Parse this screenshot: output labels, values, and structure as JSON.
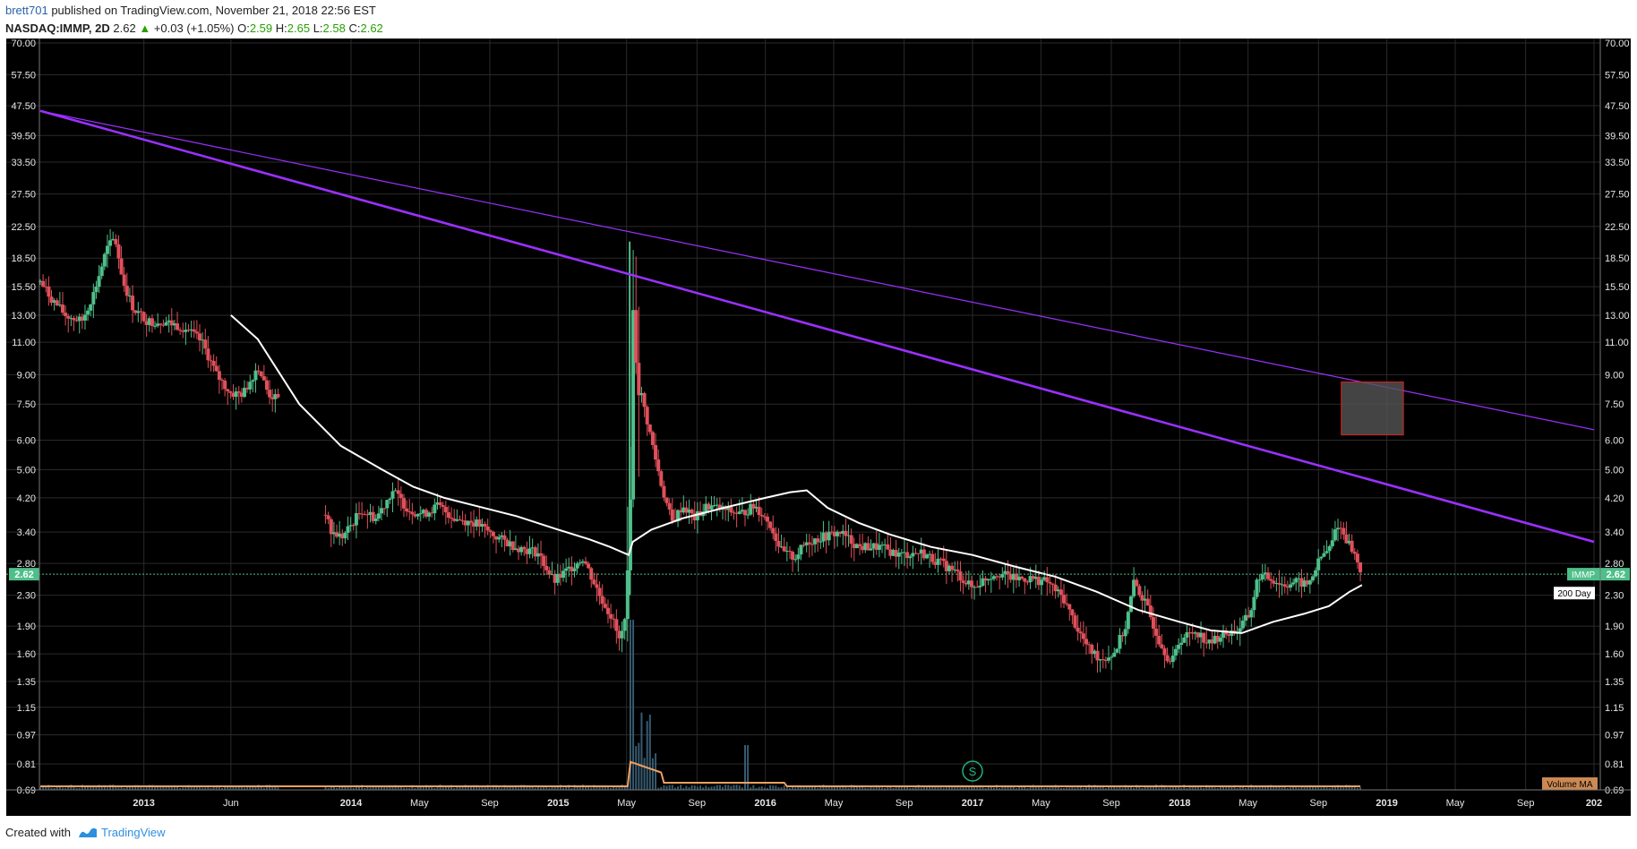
{
  "header": {
    "author": "brett701",
    "published": "published on TradingView.com, November 21, 2018 22:56 EST",
    "symbol": "NASDAQ:IMMP, 2D",
    "last": "2.62",
    "change": "+0.03 (+1.05%)",
    "o_label": "O:",
    "o": "2.59",
    "h_label": "H:",
    "h": "2.65",
    "l_label": "L:",
    "l": "2.58",
    "c_label": "C:",
    "c": "2.62"
  },
  "footer": {
    "created": "Created with",
    "brand": "TradingView"
  },
  "colors": {
    "bg": "#000000",
    "grid": "#2a2a2a",
    "up": "#4fbf8a",
    "down": "#e0505a",
    "ma": "#ffffff",
    "trend": "#9b30ff",
    "volume": "#f0a060",
    "box_fill": "#555555",
    "box_stroke": "#e02020",
    "price_tag": "#4fbf8a",
    "signal": "#20b080"
  },
  "chart_data": {
    "type": "candlestick",
    "scale": "log",
    "symbol": "IMMP",
    "last_price": 2.62,
    "last_price_label": "2.62",
    "y_ticks": [
      "70.00",
      "57.50",
      "47.50",
      "39.50",
      "33.50",
      "27.50",
      "22.50",
      "18.50",
      "15.50",
      "13.00",
      "11.00",
      "9.00",
      "7.50",
      "6.00",
      "5.00",
      "4.20",
      "3.40",
      "2.80",
      "2.30",
      "1.90",
      "1.60",
      "1.35",
      "1.15",
      "0.97",
      "0.81",
      "0.69"
    ],
    "x_ticks": [
      {
        "label": "2013",
        "t": 2013.0,
        "bold": true
      },
      {
        "label": "Jun",
        "t": 2013.42,
        "bold": false
      },
      {
        "label": "2014",
        "t": 2014.0,
        "bold": true
      },
      {
        "label": "May",
        "t": 2014.33,
        "bold": false
      },
      {
        "label": "Sep",
        "t": 2014.67,
        "bold": false
      },
      {
        "label": "2015",
        "t": 2015.0,
        "bold": true
      },
      {
        "label": "May",
        "t": 2015.33,
        "bold": false
      },
      {
        "label": "Sep",
        "t": 2015.67,
        "bold": false
      },
      {
        "label": "2016",
        "t": 2016.0,
        "bold": true
      },
      {
        "label": "May",
        "t": 2016.33,
        "bold": false
      },
      {
        "label": "Sep",
        "t": 2016.67,
        "bold": false
      },
      {
        "label": "2017",
        "t": 2017.0,
        "bold": true
      },
      {
        "label": "May",
        "t": 2017.33,
        "bold": false
      },
      {
        "label": "Sep",
        "t": 2017.67,
        "bold": false
      },
      {
        "label": "2018",
        "t": 2018.0,
        "bold": true
      },
      {
        "label": "May",
        "t": 2018.33,
        "bold": false
      },
      {
        "label": "Sep",
        "t": 2018.67,
        "bold": false
      },
      {
        "label": "2019",
        "t": 2019.0,
        "bold": true
      },
      {
        "label": "May",
        "t": 2019.33,
        "bold": false
      },
      {
        "label": "Sep",
        "t": 2019.67,
        "bold": false
      },
      {
        "label": "202",
        "t": 2020.0,
        "bold": true
      }
    ],
    "price_path": [
      [
        2012.5,
        16.0
      ],
      [
        2012.55,
        14.5
      ],
      [
        2012.62,
        13.0
      ],
      [
        2012.7,
        12.5
      ],
      [
        2012.76,
        15.0
      ],
      [
        2012.82,
        19.5
      ],
      [
        2012.86,
        21.0
      ],
      [
        2012.9,
        16.0
      ],
      [
        2012.95,
        13.5
      ],
      [
        2013.02,
        12.5
      ],
      [
        2013.1,
        12.5
      ],
      [
        2013.2,
        12.0
      ],
      [
        2013.28,
        11.0
      ],
      [
        2013.35,
        9.0
      ],
      [
        2013.42,
        8.0
      ],
      [
        2013.48,
        8.0
      ],
      [
        2013.55,
        9.5
      ],
      [
        2013.6,
        8.0
      ],
      [
        2013.66,
        7.6
      ],
      [
        2013.87,
        4.0
      ],
      [
        2013.9,
        3.4
      ],
      [
        2013.96,
        3.3
      ],
      [
        2014.05,
        3.9
      ],
      [
        2014.12,
        3.7
      ],
      [
        2014.2,
        4.4
      ],
      [
        2014.28,
        3.9
      ],
      [
        2014.35,
        3.8
      ],
      [
        2014.42,
        4.0
      ],
      [
        2014.5,
        3.7
      ],
      [
        2014.6,
        3.6
      ],
      [
        2014.7,
        3.3
      ],
      [
        2014.8,
        3.1
      ],
      [
        2014.9,
        3.0
      ],
      [
        2014.98,
        2.5
      ],
      [
        2015.05,
        2.7
      ],
      [
        2015.12,
        2.9
      ],
      [
        2015.2,
        2.3
      ],
      [
        2015.26,
        2.0
      ],
      [
        2015.3,
        1.7
      ],
      [
        2015.34,
        2.4
      ],
      [
        2015.36,
        13.0
      ],
      [
        2015.4,
        8.0
      ],
      [
        2015.45,
        6.0
      ],
      [
        2015.5,
        4.5
      ],
      [
        2015.55,
        3.6
      ],
      [
        2015.6,
        4.0
      ],
      [
        2015.66,
        3.7
      ],
      [
        2015.72,
        4.0
      ],
      [
        2015.8,
        3.9
      ],
      [
        2015.88,
        3.8
      ],
      [
        2015.95,
        4.0
      ],
      [
        2016.02,
        3.6
      ],
      [
        2016.08,
        3.0
      ],
      [
        2016.14,
        2.9
      ],
      [
        2016.2,
        3.2
      ],
      [
        2016.28,
        3.3
      ],
      [
        2016.36,
        3.4
      ],
      [
        2016.45,
        3.1
      ],
      [
        2016.55,
        3.1
      ],
      [
        2016.65,
        2.95
      ],
      [
        2016.75,
        3.0
      ],
      [
        2016.85,
        2.8
      ],
      [
        2016.92,
        2.65
      ],
      [
        2017.0,
        2.4
      ],
      [
        2017.06,
        2.55
      ],
      [
        2017.12,
        2.65
      ],
      [
        2017.2,
        2.55
      ],
      [
        2017.28,
        2.55
      ],
      [
        2017.36,
        2.5
      ],
      [
        2017.44,
        2.25
      ],
      [
        2017.5,
        1.9
      ],
      [
        2017.56,
        1.65
      ],
      [
        2017.62,
        1.55
      ],
      [
        2017.68,
        1.6
      ],
      [
        2017.74,
        1.9
      ],
      [
        2017.78,
        2.5
      ],
      [
        2017.84,
        2.15
      ],
      [
        2017.9,
        1.75
      ],
      [
        2017.96,
        1.5
      ],
      [
        2018.0,
        1.75
      ],
      [
        2018.08,
        1.85
      ],
      [
        2018.14,
        1.7
      ],
      [
        2018.2,
        1.8
      ],
      [
        2018.28,
        1.85
      ],
      [
        2018.34,
        2.05
      ],
      [
        2018.38,
        2.6
      ],
      [
        2018.44,
        2.55
      ],
      [
        2018.5,
        2.45
      ],
      [
        2018.56,
        2.5
      ],
      [
        2018.62,
        2.45
      ],
      [
        2018.68,
        2.9
      ],
      [
        2018.73,
        3.1
      ],
      [
        2018.76,
        3.6
      ],
      [
        2018.8,
        3.3
      ],
      [
        2018.84,
        3.0
      ],
      [
        2018.88,
        2.62
      ]
    ],
    "ma_label": "200 Day",
    "ma_path": [
      [
        2013.42,
        13.0
      ],
      [
        2013.55,
        11.2
      ],
      [
        2013.75,
        7.5
      ],
      [
        2013.95,
        5.8
      ],
      [
        2014.15,
        5.0
      ],
      [
        2014.3,
        4.5
      ],
      [
        2014.45,
        4.2
      ],
      [
        2014.6,
        4.0
      ],
      [
        2014.8,
        3.75
      ],
      [
        2015.0,
        3.45
      ],
      [
        2015.15,
        3.25
      ],
      [
        2015.25,
        3.1
      ],
      [
        2015.34,
        2.95
      ],
      [
        2015.36,
        3.2
      ],
      [
        2015.45,
        3.45
      ],
      [
        2015.6,
        3.7
      ],
      [
        2015.8,
        3.95
      ],
      [
        2016.0,
        4.2
      ],
      [
        2016.12,
        4.35
      ],
      [
        2016.2,
        4.4
      ],
      [
        2016.3,
        3.95
      ],
      [
        2016.45,
        3.6
      ],
      [
        2016.6,
        3.35
      ],
      [
        2016.8,
        3.1
      ],
      [
        2017.0,
        2.95
      ],
      [
        2017.2,
        2.75
      ],
      [
        2017.4,
        2.58
      ],
      [
        2017.6,
        2.35
      ],
      [
        2017.8,
        2.1
      ],
      [
        2018.0,
        1.95
      ],
      [
        2018.15,
        1.85
      ],
      [
        2018.3,
        1.82
      ],
      [
        2018.45,
        1.95
      ],
      [
        2018.6,
        2.05
      ],
      [
        2018.72,
        2.15
      ],
      [
        2018.82,
        2.35
      ],
      [
        2018.88,
        2.45
      ]
    ],
    "trendlines": [
      {
        "from": [
          2012.5,
          46.0
        ],
        "to": [
          2020.0,
          3.2
        ],
        "width": 2.6
      },
      {
        "from": [
          2012.5,
          46.0
        ],
        "to": [
          2020.0,
          6.4
        ],
        "width": 1.2
      }
    ],
    "box": {
      "t0": 2018.78,
      "t1": 2019.08,
      "p_hi": 8.6,
      "p_lo": 6.2
    },
    "signal_marker": {
      "t": 2017.0,
      "label": "S"
    },
    "volume_label": "Volume MA"
  }
}
